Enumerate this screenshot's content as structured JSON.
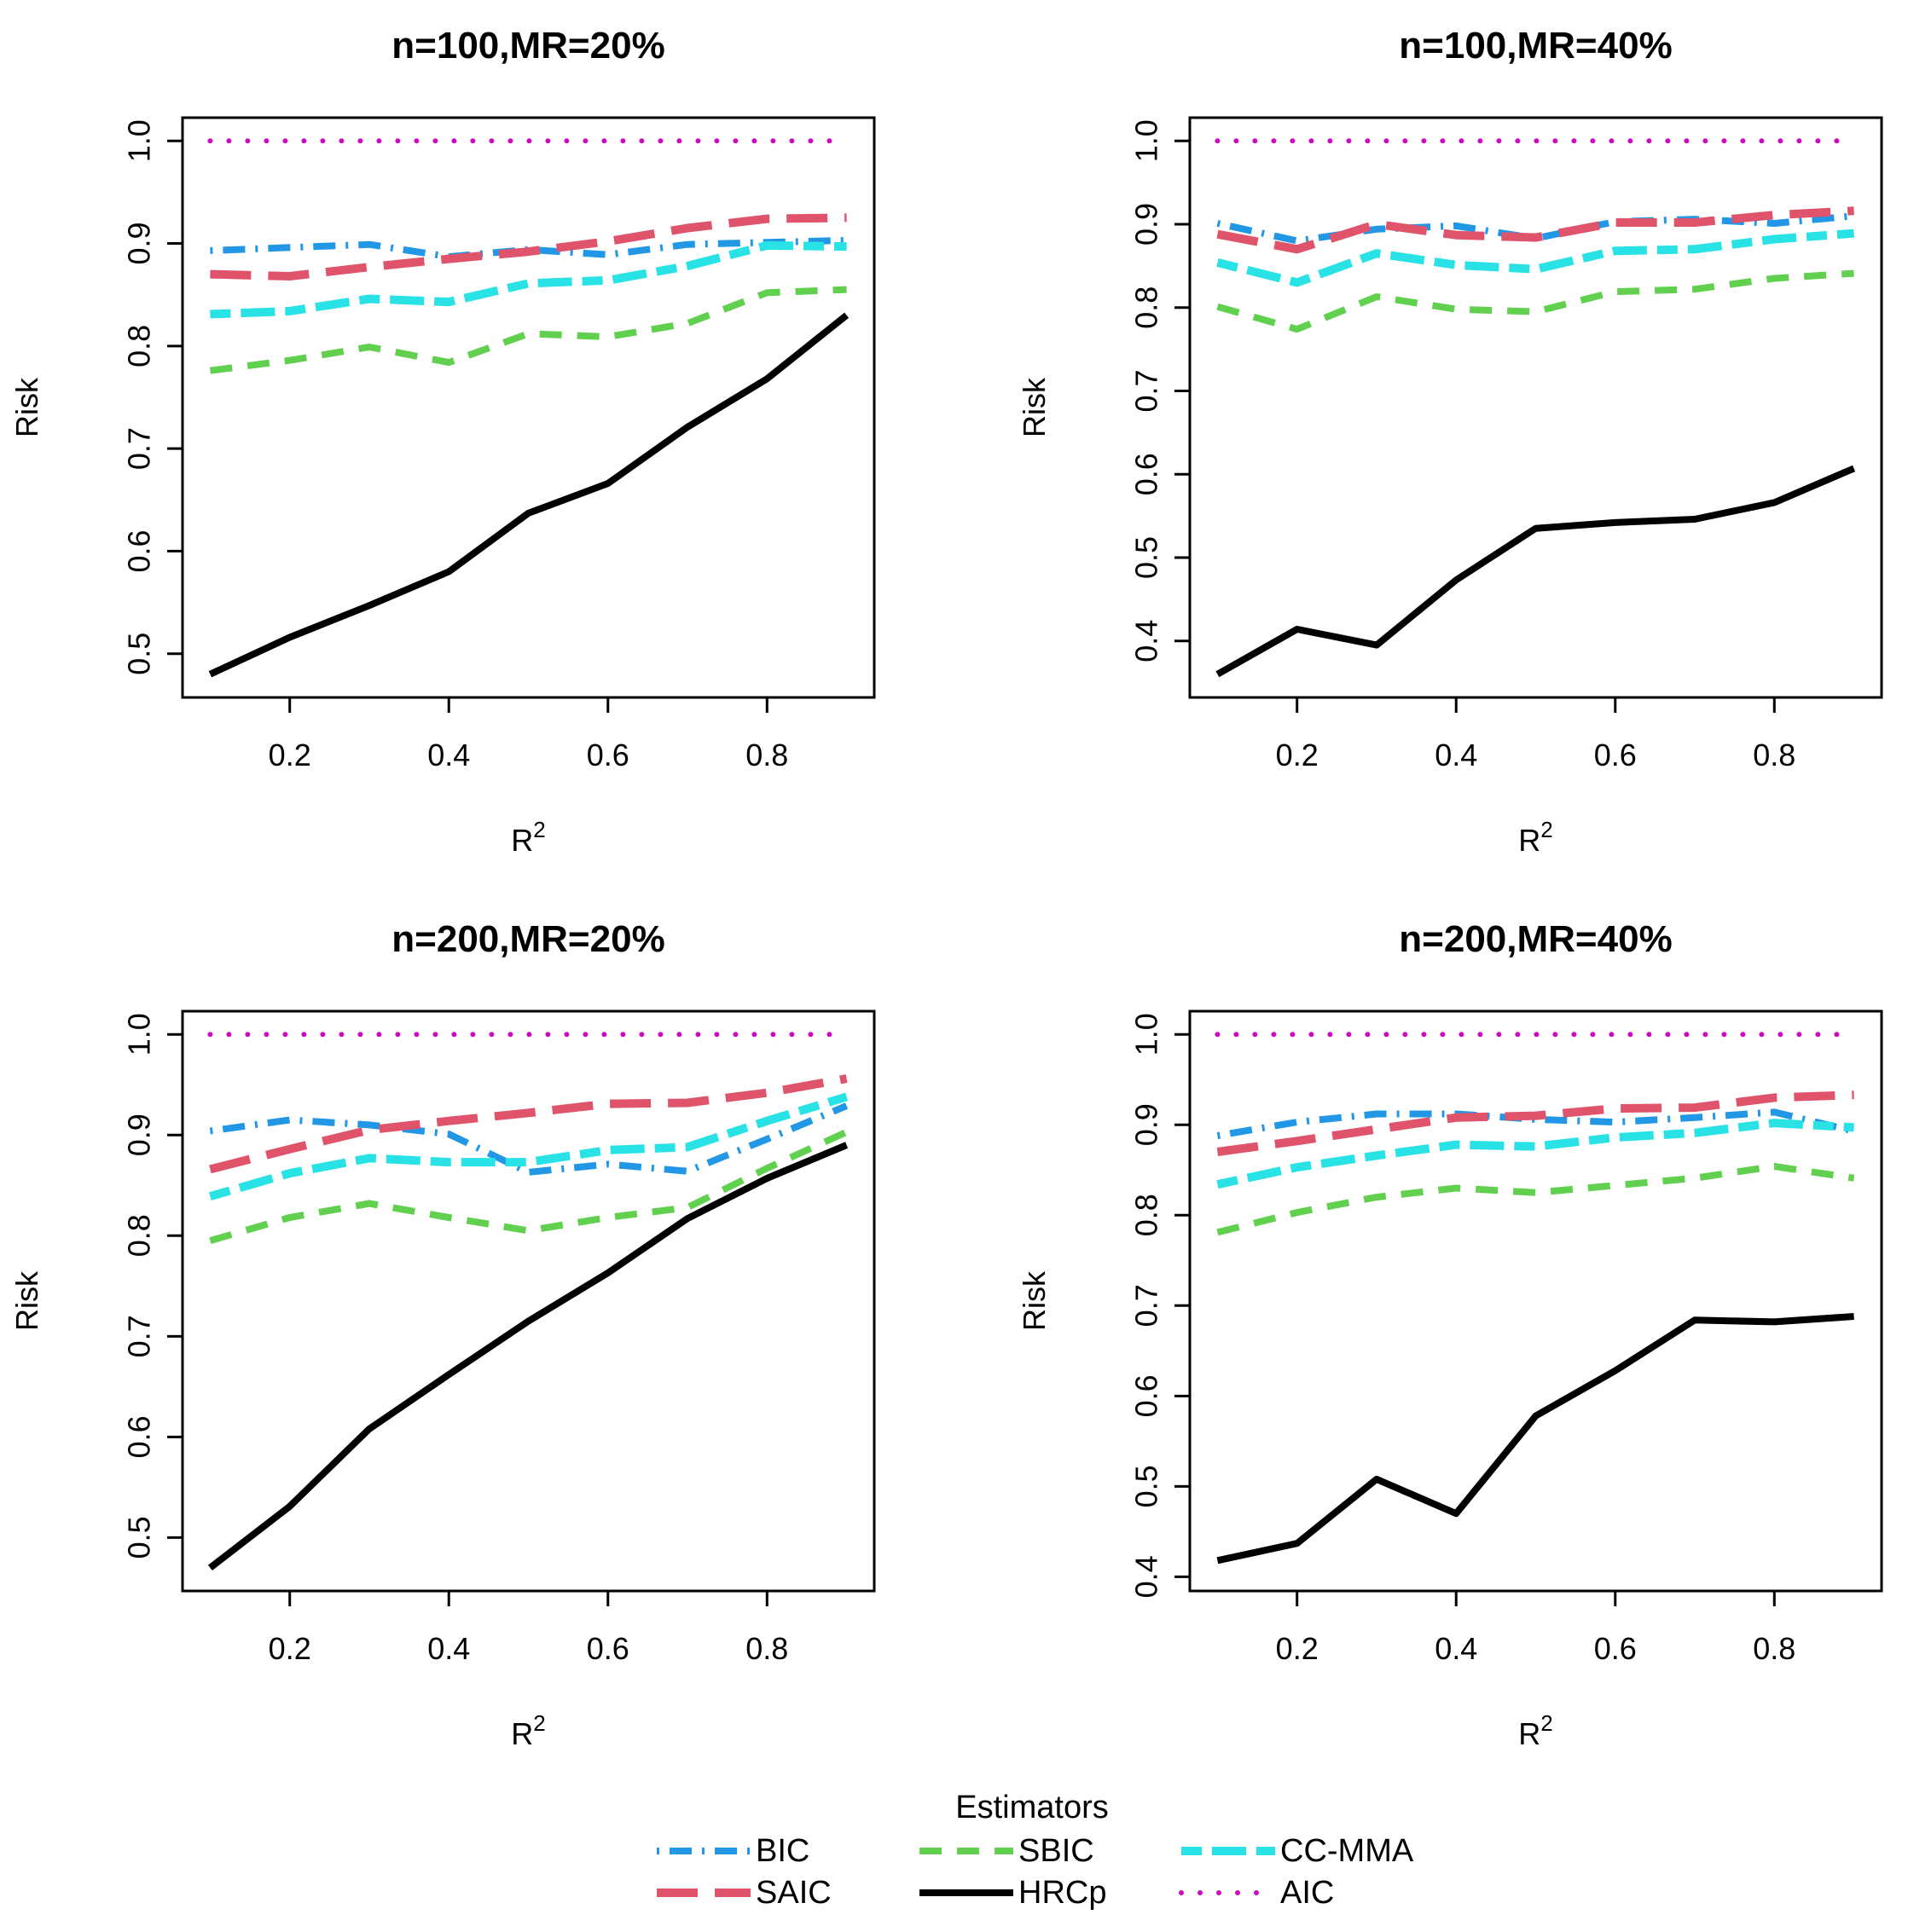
{
  "chart_data": [
    {
      "type": "line",
      "title": "n=100,MR=20%",
      "xlabel": "R",
      "xlabel_sup": "2",
      "ylabel": "Risk",
      "x": [
        0.1,
        0.2,
        0.3,
        0.4,
        0.5,
        0.6,
        0.7,
        0.8,
        0.9
      ],
      "xlim": [
        0.1,
        0.9
      ],
      "ylim": [
        0.48,
        1.0
      ],
      "xticks": [
        0.2,
        0.4,
        0.6,
        0.8
      ],
      "xtick_labels": [
        "0.2",
        "0.4",
        "0.6",
        "0.8"
      ],
      "yticks": [
        0.5,
        0.6,
        0.7,
        0.8,
        0.9,
        1.0
      ],
      "ytick_labels": [
        "0.5",
        "0.6",
        "0.7",
        "0.8",
        "0.9",
        "1.0"
      ],
      "series": [
        {
          "name": "BIC",
          "values": [
            0.893,
            0.896,
            0.899,
            0.887,
            0.894,
            0.889,
            0.899,
            0.901,
            0.903
          ]
        },
        {
          "name": "SAIC",
          "values": [
            0.87,
            0.868,
            0.877,
            0.885,
            0.892,
            0.902,
            0.915,
            0.924,
            0.925
          ]
        },
        {
          "name": "SBIC",
          "values": [
            0.776,
            0.786,
            0.799,
            0.784,
            0.812,
            0.809,
            0.822,
            0.852,
            0.855
          ]
        },
        {
          "name": "HRCp",
          "values": [
            0.48,
            0.516,
            0.547,
            0.58,
            0.637,
            0.666,
            0.721,
            0.768,
            0.83
          ]
        },
        {
          "name": "CC-MMA",
          "values": [
            0.831,
            0.834,
            0.846,
            0.843,
            0.861,
            0.864,
            0.878,
            0.898,
            0.897
          ]
        },
        {
          "name": "AIC",
          "values": [
            1.0,
            1.0,
            1.0,
            1.0,
            1.0,
            1.0,
            1.0,
            1.0,
            1.0
          ]
        }
      ]
    },
    {
      "type": "line",
      "title": "n=100,MR=40%",
      "xlabel": "R",
      "xlabel_sup": "2",
      "ylabel": "Risk",
      "x": [
        0.1,
        0.2,
        0.3,
        0.4,
        0.5,
        0.6,
        0.7,
        0.8,
        0.9
      ],
      "xlim": [
        0.1,
        0.9
      ],
      "ylim": [
        0.36,
        1.0
      ],
      "xticks": [
        0.2,
        0.4,
        0.6,
        0.8
      ],
      "xtick_labels": [
        "0.2",
        "0.4",
        "0.6",
        "0.8"
      ],
      "yticks": [
        0.4,
        0.5,
        0.6,
        0.7,
        0.8,
        0.9,
        1.0
      ],
      "ytick_labels": [
        "0.4",
        "0.5",
        "0.6",
        "0.7",
        "0.8",
        "0.9",
        "1.0"
      ],
      "series": [
        {
          "name": "BIC",
          "values": [
            0.901,
            0.88,
            0.894,
            0.898,
            0.883,
            0.903,
            0.906,
            0.901,
            0.91
          ]
        },
        {
          "name": "SAIC",
          "values": [
            0.888,
            0.87,
            0.9,
            0.887,
            0.884,
            0.902,
            0.902,
            0.911,
            0.916
          ]
        },
        {
          "name": "SBIC",
          "values": [
            0.801,
            0.774,
            0.813,
            0.798,
            0.795,
            0.819,
            0.822,
            0.835,
            0.841
          ]
        },
        {
          "name": "HRCp",
          "values": [
            0.36,
            0.414,
            0.395,
            0.473,
            0.535,
            0.542,
            0.546,
            0.566,
            0.607
          ]
        },
        {
          "name": "CC-MMA",
          "values": [
            0.854,
            0.83,
            0.865,
            0.851,
            0.846,
            0.868,
            0.87,
            0.882,
            0.889
          ]
        },
        {
          "name": "AIC",
          "values": [
            1.0,
            1.0,
            1.0,
            1.0,
            1.0,
            1.0,
            1.0,
            1.0,
            1.0
          ]
        }
      ]
    },
    {
      "type": "line",
      "title": "n=200,MR=20%",
      "xlabel": "R",
      "xlabel_sup": "2",
      "ylabel": "Risk",
      "x": [
        0.1,
        0.2,
        0.3,
        0.4,
        0.5,
        0.6,
        0.7,
        0.8,
        0.9
      ],
      "xlim": [
        0.1,
        0.9
      ],
      "ylim": [
        0.47,
        1.0
      ],
      "xticks": [
        0.2,
        0.4,
        0.6,
        0.8
      ],
      "xtick_labels": [
        "0.2",
        "0.4",
        "0.6",
        "0.8"
      ],
      "yticks": [
        0.5,
        0.6,
        0.7,
        0.8,
        0.9,
        1.0
      ],
      "ytick_labels": [
        "0.5",
        "0.6",
        "0.7",
        "0.8",
        "0.9",
        "1.0"
      ],
      "series": [
        {
          "name": "BIC",
          "values": [
            0.904,
            0.915,
            0.91,
            0.901,
            0.863,
            0.871,
            0.864,
            0.896,
            0.929
          ]
        },
        {
          "name": "SAIC",
          "values": [
            0.866,
            0.886,
            0.905,
            0.914,
            0.922,
            0.931,
            0.932,
            0.942,
            0.956
          ]
        },
        {
          "name": "SBIC",
          "values": [
            0.795,
            0.818,
            0.832,
            0.818,
            0.805,
            0.818,
            0.828,
            0.867,
            0.903
          ]
        },
        {
          "name": "HRCp",
          "values": [
            0.47,
            0.531,
            0.608,
            0.662,
            0.715,
            0.763,
            0.817,
            0.857,
            0.89
          ]
        },
        {
          "name": "CC-MMA",
          "values": [
            0.839,
            0.862,
            0.877,
            0.873,
            0.873,
            0.885,
            0.888,
            0.914,
            0.938
          ]
        },
        {
          "name": "AIC",
          "values": [
            1.0,
            1.0,
            1.0,
            1.0,
            1.0,
            1.0,
            1.0,
            1.0,
            1.0
          ]
        }
      ]
    },
    {
      "type": "line",
      "title": "n=200,MR=40%",
      "xlabel": "R",
      "xlabel_sup": "2",
      "ylabel": "Risk",
      "x": [
        0.1,
        0.2,
        0.3,
        0.4,
        0.5,
        0.6,
        0.7,
        0.8,
        0.9
      ],
      "xlim": [
        0.1,
        0.9
      ],
      "ylim": [
        0.41,
        1.0
      ],
      "xticks": [
        0.2,
        0.4,
        0.6,
        0.8
      ],
      "xtick_labels": [
        "0.2",
        "0.4",
        "0.6",
        "0.8"
      ],
      "yticks": [
        0.4,
        0.5,
        0.6,
        0.7,
        0.8,
        0.9,
        1.0
      ],
      "ytick_labels": [
        "0.4",
        "0.5",
        "0.6",
        "0.7",
        "0.8",
        "0.9",
        "1.0"
      ],
      "series": [
        {
          "name": "BIC",
          "values": [
            0.888,
            0.903,
            0.912,
            0.912,
            0.906,
            0.903,
            0.908,
            0.914,
            0.893
          ]
        },
        {
          "name": "SAIC",
          "values": [
            0.87,
            0.882,
            0.895,
            0.908,
            0.91,
            0.918,
            0.919,
            0.93,
            0.933
          ]
        },
        {
          "name": "SBIC",
          "values": [
            0.781,
            0.803,
            0.82,
            0.83,
            0.825,
            0.833,
            0.841,
            0.854,
            0.841
          ]
        },
        {
          "name": "HRCp",
          "values": [
            0.418,
            0.437,
            0.508,
            0.47,
            0.578,
            0.628,
            0.684,
            0.682,
            0.688
          ]
        },
        {
          "name": "CC-MMA",
          "values": [
            0.834,
            0.853,
            0.866,
            0.878,
            0.876,
            0.886,
            0.891,
            0.902,
            0.897
          ]
        },
        {
          "name": "AIC",
          "values": [
            1.0,
            1.0,
            1.0,
            1.0,
            1.0,
            1.0,
            1.0,
            1.0,
            1.0
          ]
        }
      ]
    }
  ],
  "legend": {
    "title": "Estimators",
    "placement": "bottom",
    "items": [
      {
        "name": "BIC",
        "color": "#2297E6",
        "style": "dotdash"
      },
      {
        "name": "SAIC",
        "color": "#DF536B",
        "style": "longdash"
      },
      {
        "name": "SBIC",
        "color": "#61D04F",
        "style": "dashed"
      },
      {
        "name": "HRCp",
        "color": "#000000",
        "style": "solid"
      },
      {
        "name": "CC-MMA",
        "color": "#28E2E5",
        "style": "twodash"
      },
      {
        "name": "AIC",
        "color": "#CD0BBC",
        "style": "dotted"
      }
    ]
  }
}
